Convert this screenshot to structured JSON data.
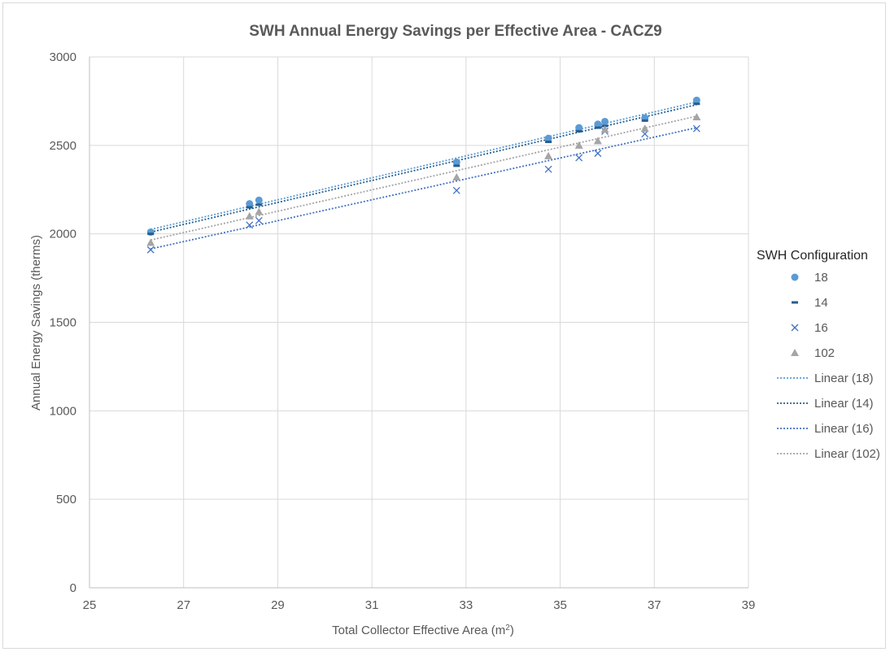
{
  "chart_data": {
    "type": "scatter",
    "title": "SWH Annual Energy Savings per Effective Area - CACZ9",
    "xlabel": "Total Collector Effective Area (m",
    "xlabel_sup": "2",
    "xlabel_suffix": ")",
    "ylabel": "Annual Energy Savings (therms)",
    "xlim": [
      25,
      39
    ],
    "ylim": [
      0,
      3000
    ],
    "xticks": [
      25,
      27,
      29,
      31,
      33,
      35,
      37,
      39
    ],
    "yticks": [
      0,
      500,
      1000,
      1500,
      2000,
      2500,
      3000
    ],
    "grid": true,
    "legend_title": "SWH Configuration",
    "legend_position": "right",
    "series": [
      {
        "name": "18",
        "marker": "circle",
        "color": "#5b9bd5",
        "x": [
          26.3,
          28.4,
          28.6,
          32.8,
          34.75,
          35.4,
          35.8,
          35.95,
          36.8,
          37.9
        ],
        "y": [
          2010,
          2170,
          2190,
          2405,
          2540,
          2600,
          2620,
          2635,
          2655,
          2755
        ]
      },
      {
        "name": "14",
        "marker": "dash",
        "color": "#255e91",
        "x": [
          26.3,
          28.4,
          28.6,
          32.8,
          34.75,
          35.4,
          35.8,
          35.95,
          36.8,
          37.9
        ],
        "y": [
          2000,
          2150,
          2165,
          2385,
          2520,
          2580,
          2600,
          2610,
          2640,
          2735
        ]
      },
      {
        "name": "16",
        "marker": "x",
        "color": "#4472c4",
        "x": [
          26.3,
          28.4,
          28.6,
          32.8,
          34.75,
          35.4,
          35.8,
          35.95,
          36.8,
          37.9
        ],
        "y": [
          1910,
          2050,
          2075,
          2245,
          2365,
          2430,
          2455,
          2580,
          2565,
          2595
        ]
      },
      {
        "name": "102",
        "marker": "triangle",
        "color": "#a5a5a5",
        "x": [
          26.3,
          28.4,
          28.6,
          32.8,
          34.75,
          35.4,
          35.8,
          35.95,
          36.8,
          37.9
        ],
        "y": [
          1950,
          2100,
          2125,
          2320,
          2440,
          2500,
          2525,
          2590,
          2595,
          2660
        ]
      }
    ],
    "trendlines": [
      {
        "name": "Linear (18)",
        "color": "#5b9bd5",
        "x": [
          26.3,
          37.9
        ],
        "y": [
          2025,
          2745
        ]
      },
      {
        "name": "Linear (14)",
        "color": "#255e91",
        "x": [
          26.3,
          37.9
        ],
        "y": [
          2010,
          2730
        ]
      },
      {
        "name": "Linear (16)",
        "color": "#4472c4",
        "x": [
          26.3,
          37.9
        ],
        "y": [
          1915,
          2600
        ]
      },
      {
        "name": "Linear (102)",
        "color": "#a5a5a5",
        "x": [
          26.3,
          37.9
        ],
        "y": [
          1965,
          2665
        ]
      }
    ]
  }
}
